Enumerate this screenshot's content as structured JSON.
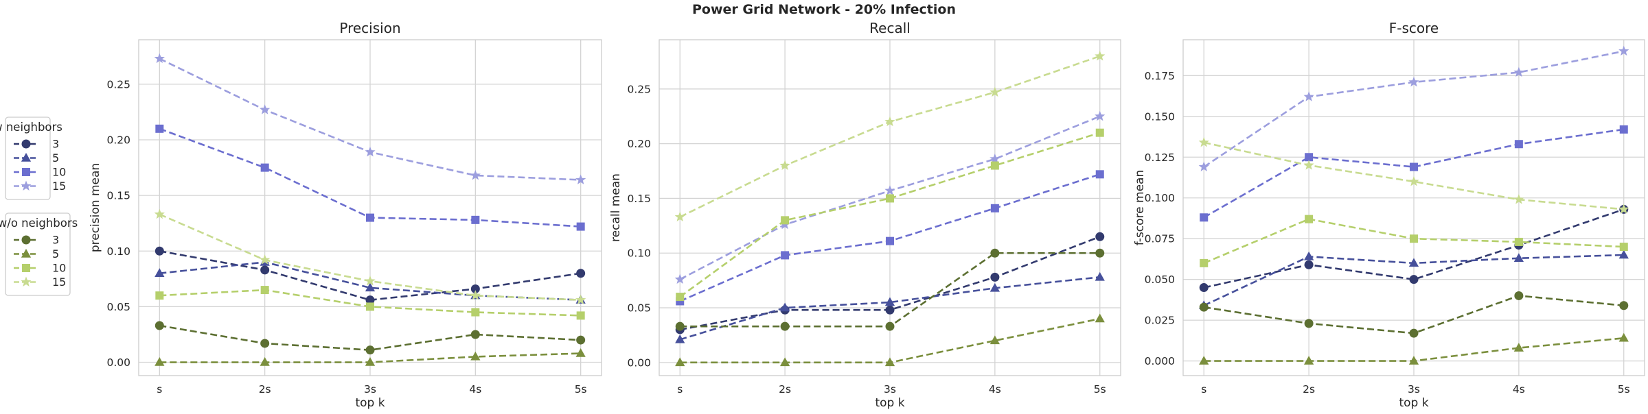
{
  "suptitle": "Power Grid Network - 20% Infection",
  "colors": {
    "w_3": "#323a6e",
    "w_5": "#46509b",
    "w_10": "#6b6ecf",
    "w_15": "#9c9ede",
    "wo_3": "#5c6f31",
    "wo_5": "#7b8f3d",
    "wo_10": "#b5cf6b",
    "wo_15": "#c8db90"
  },
  "markers": {
    "3": "circle",
    "5": "triangle",
    "10": "square",
    "15": "star"
  },
  "legends": [
    {
      "title": "w neighbors",
      "group": "w",
      "entries": [
        "3",
        "5",
        "10",
        "15"
      ]
    },
    {
      "title": "w/o neighbors",
      "group": "wo",
      "entries": [
        "3",
        "5",
        "10",
        "15"
      ]
    }
  ],
  "chart_data": [
    {
      "type": "line",
      "title": "Precision",
      "xlabel": "top k",
      "ylabel": "precision mean",
      "categories": [
        "s",
        "2s",
        "3s",
        "4s",
        "5s"
      ],
      "ylim": [
        -0.012,
        0.29
      ],
      "yticks": [
        0.0,
        0.05,
        0.1,
        0.15,
        0.2,
        0.25
      ],
      "ytick_labels": [
        "0.00",
        "0.05",
        "0.10",
        "0.15",
        "0.20",
        "0.25"
      ],
      "grid": true,
      "series": [
        {
          "group": "w",
          "k": "3",
          "values": [
            0.1,
            0.083,
            0.056,
            0.066,
            0.08
          ]
        },
        {
          "group": "w",
          "k": "5",
          "values": [
            0.08,
            0.09,
            0.067,
            0.06,
            0.056
          ]
        },
        {
          "group": "w",
          "k": "10",
          "values": [
            0.21,
            0.175,
            0.13,
            0.128,
            0.122
          ]
        },
        {
          "group": "w",
          "k": "15",
          "values": [
            0.273,
            0.227,
            0.189,
            0.168,
            0.164
          ]
        },
        {
          "group": "wo",
          "k": "3",
          "values": [
            0.033,
            0.017,
            0.011,
            0.025,
            0.02
          ]
        },
        {
          "group": "wo",
          "k": "5",
          "values": [
            0.0,
            0.0,
            0.0,
            0.005,
            0.008
          ]
        },
        {
          "group": "wo",
          "k": "10",
          "values": [
            0.06,
            0.065,
            0.05,
            0.045,
            0.042
          ]
        },
        {
          "group": "wo",
          "k": "15",
          "values": [
            0.133,
            0.092,
            0.073,
            0.06,
            0.056
          ]
        }
      ]
    },
    {
      "type": "line",
      "title": "Recall",
      "xlabel": "top k",
      "ylabel": "recall mean",
      "categories": [
        "s",
        "2s",
        "3s",
        "4s",
        "5s"
      ],
      "ylim": [
        -0.012,
        0.295
      ],
      "yticks": [
        0.0,
        0.05,
        0.1,
        0.15,
        0.2,
        0.25
      ],
      "ytick_labels": [
        "0.00",
        "0.05",
        "0.10",
        "0.15",
        "0.20",
        "0.25"
      ],
      "grid": true,
      "series": [
        {
          "group": "w",
          "k": "3",
          "values": [
            0.03,
            0.048,
            0.048,
            0.078,
            0.115
          ]
        },
        {
          "group": "w",
          "k": "5",
          "values": [
            0.021,
            0.05,
            0.055,
            0.068,
            0.078
          ]
        },
        {
          "group": "w",
          "k": "10",
          "values": [
            0.056,
            0.098,
            0.111,
            0.141,
            0.172
          ]
        },
        {
          "group": "w",
          "k": "15",
          "values": [
            0.076,
            0.126,
            0.157,
            0.186,
            0.225
          ]
        },
        {
          "group": "wo",
          "k": "3",
          "values": [
            0.033,
            0.033,
            0.033,
            0.1,
            0.1
          ]
        },
        {
          "group": "wo",
          "k": "5",
          "values": [
            0.0,
            0.0,
            0.0,
            0.02,
            0.04
          ]
        },
        {
          "group": "wo",
          "k": "10",
          "values": [
            0.06,
            0.13,
            0.15,
            0.18,
            0.21
          ]
        },
        {
          "group": "wo",
          "k": "15",
          "values": [
            0.133,
            0.18,
            0.22,
            0.247,
            0.28
          ]
        }
      ]
    },
    {
      "type": "line",
      "title": "F-score",
      "xlabel": "top k",
      "ylabel": "f-score mean",
      "categories": [
        "s",
        "2s",
        "3s",
        "4s",
        "5s"
      ],
      "ylim": [
        -0.009,
        0.197
      ],
      "yticks": [
        0.0,
        0.025,
        0.05,
        0.075,
        0.1,
        0.125,
        0.15,
        0.175
      ],
      "ytick_labels": [
        "0.000",
        "0.025",
        "0.050",
        "0.075",
        "0.100",
        "0.125",
        "0.150",
        "0.175"
      ],
      "grid": true,
      "series": [
        {
          "group": "w",
          "k": "3",
          "values": [
            0.045,
            0.059,
            0.05,
            0.071,
            0.093
          ]
        },
        {
          "group": "w",
          "k": "5",
          "values": [
            0.034,
            0.064,
            0.06,
            0.063,
            0.065
          ]
        },
        {
          "group": "w",
          "k": "10",
          "values": [
            0.088,
            0.125,
            0.119,
            0.133,
            0.142
          ]
        },
        {
          "group": "w",
          "k": "15",
          "values": [
            0.119,
            0.162,
            0.171,
            0.177,
            0.19
          ]
        },
        {
          "group": "wo",
          "k": "3",
          "values": [
            0.033,
            0.023,
            0.017,
            0.04,
            0.034
          ]
        },
        {
          "group": "wo",
          "k": "5",
          "values": [
            0.0,
            0.0,
            0.0,
            0.008,
            0.014
          ]
        },
        {
          "group": "wo",
          "k": "10",
          "values": [
            0.06,
            0.087,
            0.075,
            0.073,
            0.07
          ]
        },
        {
          "group": "wo",
          "k": "15",
          "values": [
            0.134,
            0.12,
            0.11,
            0.099,
            0.093
          ]
        }
      ]
    }
  ]
}
